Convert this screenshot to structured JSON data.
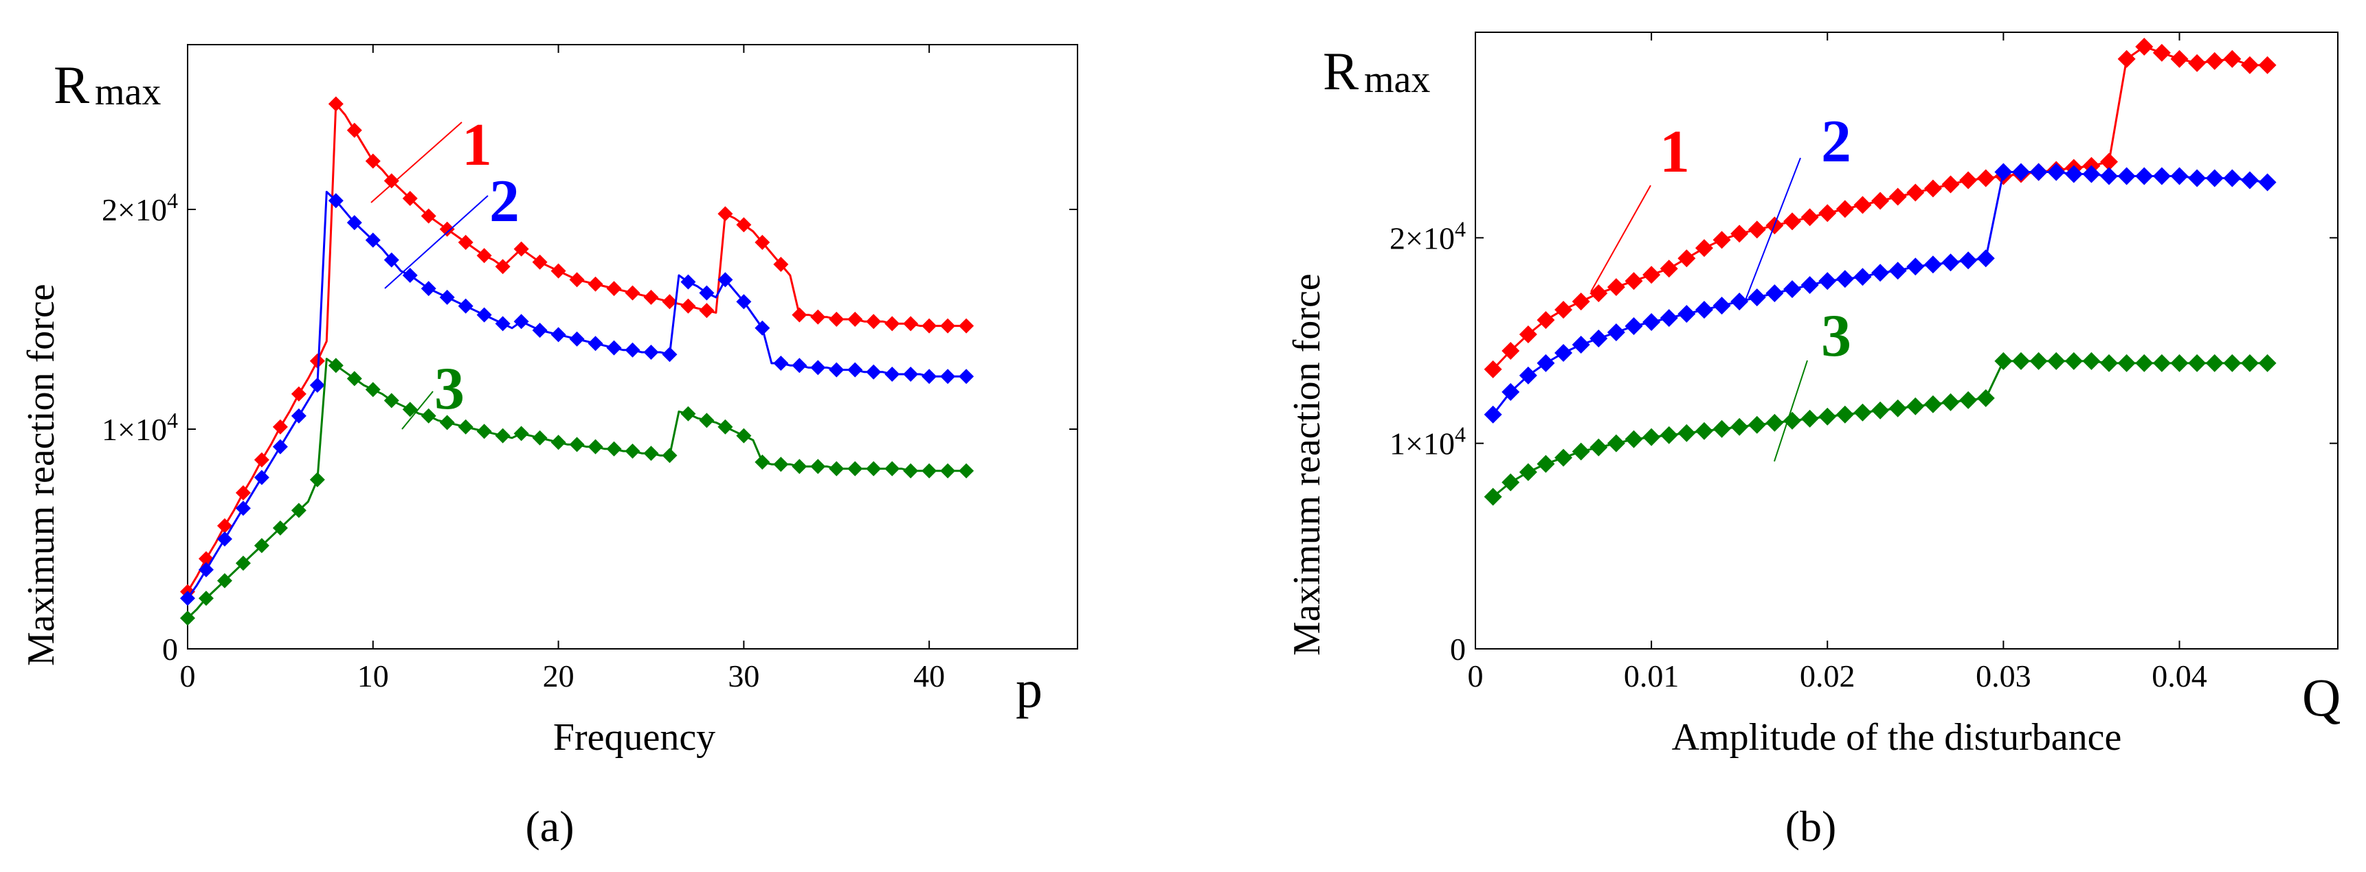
{
  "chart_data": [
    {
      "type": "line",
      "panel": "a",
      "caption": "(a)",
      "xlabel": "Frequency",
      "xsymbol": "p",
      "ylabel": "Maximum reaction force",
      "ysymbol_main": "R",
      "ysymbol_sub": "max",
      "xlim": [
        0,
        48
      ],
      "ylim": [
        0,
        27500
      ],
      "xticks": [
        0,
        10,
        20,
        30,
        40
      ],
      "xtick_labels": [
        "0",
        "10",
        "20",
        "30",
        "40"
      ],
      "yticks": [
        0,
        10000,
        20000
      ],
      "ytick_labels": [
        {
          "mantissa": "0",
          "exp": ""
        },
        {
          "mantissa": "1×10",
          "exp": "4"
        },
        {
          "mantissa": "2×10",
          "exp": "4"
        }
      ],
      "series": [
        {
          "name": "1",
          "color": "#ff0000",
          "marker_every": 2,
          "x": [
            0,
            0.5,
            1,
            1.5,
            2,
            2.5,
            3,
            3.5,
            4,
            4.5,
            5,
            5.5,
            6,
            6.5,
            7,
            7.5,
            8,
            8.5,
            9,
            9.5,
            10,
            10.5,
            11,
            11.5,
            12,
            12.5,
            13,
            13.5,
            14,
            14.5,
            15,
            15.5,
            16,
            16.5,
            17,
            17.5,
            18,
            18.5,
            19,
            19.5,
            20,
            20.5,
            21,
            21.5,
            22,
            22.5,
            23,
            23.5,
            24,
            24.5,
            25,
            25.5,
            26,
            26.5,
            27,
            27.5,
            28,
            28.5,
            29,
            29.5,
            30,
            30.5,
            31,
            31.5,
            32,
            32.5,
            33,
            33.5,
            34,
            34.5,
            35,
            35.5,
            36,
            36.5,
            37,
            37.5,
            38,
            38.5,
            39,
            39.5,
            40,
            40.5,
            41,
            41.5,
            42
          ],
          "y": [
            2600,
            3300,
            4100,
            4800,
            5600,
            6300,
            7100,
            7800,
            8600,
            9300,
            10100,
            10800,
            11600,
            12300,
            13100,
            14000,
            24800,
            24300,
            23600,
            22900,
            22200,
            21800,
            21300,
            20900,
            20500,
            20100,
            19700,
            19400,
            19100,
            18800,
            18500,
            18200,
            17900,
            17700,
            17400,
            17800,
            18200,
            17900,
            17600,
            17400,
            17200,
            17000,
            16800,
            16700,
            16600,
            16500,
            16400,
            16300,
            16200,
            16100,
            16000,
            15900,
            15800,
            15700,
            15600,
            15500,
            15400,
            15300,
            19800,
            19600,
            19300,
            19000,
            18500,
            18000,
            17500,
            17000,
            15200,
            15200,
            15100,
            15100,
            15000,
            15000,
            15000,
            14900,
            14900,
            14900,
            14800,
            14800,
            14800,
            14700,
            14700,
            14700,
            14700,
            14700,
            14700
          ]
        },
        {
          "name": "2",
          "color": "#0000ff",
          "marker_every": 2,
          "x": [
            0,
            0.5,
            1,
            1.5,
            2,
            2.5,
            3,
            3.5,
            4,
            4.5,
            5,
            5.5,
            6,
            6.5,
            7,
            7.5,
            8,
            8.5,
            9,
            9.5,
            10,
            10.5,
            11,
            11.5,
            12,
            12.5,
            13,
            13.5,
            14,
            14.5,
            15,
            15.5,
            16,
            16.5,
            17,
            17.5,
            18,
            18.5,
            19,
            19.5,
            20,
            20.5,
            21,
            21.5,
            22,
            22.5,
            23,
            23.5,
            24,
            24.5,
            25,
            25.5,
            26,
            26.5,
            27,
            27.5,
            28,
            28.5,
            29,
            29.5,
            30,
            30.5,
            31,
            31.5,
            32,
            32.5,
            33,
            33.5,
            34,
            34.5,
            35,
            35.5,
            36,
            36.5,
            37,
            37.5,
            38,
            38.5,
            39,
            39.5,
            40,
            40.5,
            41,
            41.5,
            42
          ],
          "y": [
            2300,
            2900,
            3600,
            4300,
            5000,
            5700,
            6400,
            7100,
            7800,
            8500,
            9200,
            9900,
            10600,
            11300,
            12000,
            20800,
            20400,
            19900,
            19400,
            19000,
            18600,
            18200,
            17700,
            17200,
            17000,
            16700,
            16400,
            16200,
            16000,
            15800,
            15600,
            15400,
            15200,
            15000,
            14800,
            14600,
            14900,
            14700,
            14500,
            14400,
            14300,
            14200,
            14100,
            14000,
            13900,
            13800,
            13700,
            13600,
            13600,
            13500,
            13500,
            13500,
            13400,
            17000,
            16700,
            16500,
            16200,
            16000,
            16800,
            16300,
            15800,
            15200,
            14600,
            13000,
            13000,
            12900,
            12900,
            12800,
            12800,
            12800,
            12700,
            12700,
            12700,
            12600,
            12600,
            12600,
            12500,
            12500,
            12500,
            12500,
            12400,
            12400,
            12400,
            12400,
            12400
          ]
        },
        {
          "name": "3",
          "color": "#008000",
          "marker_every": 2,
          "x": [
            0,
            0.5,
            1,
            1.5,
            2,
            2.5,
            3,
            3.5,
            4,
            4.5,
            5,
            5.5,
            6,
            6.5,
            7,
            7.5,
            8,
            8.5,
            9,
            9.5,
            10,
            10.5,
            11,
            11.5,
            12,
            12.5,
            13,
            13.5,
            14,
            14.5,
            15,
            15.5,
            16,
            16.5,
            17,
            17.5,
            18,
            18.5,
            19,
            19.5,
            20,
            20.5,
            21,
            21.5,
            22,
            22.5,
            23,
            23.5,
            24,
            24.5,
            25,
            25.5,
            26,
            26.5,
            27,
            27.5,
            28,
            28.5,
            29,
            29.5,
            30,
            30.5,
            31,
            31.5,
            32,
            32.5,
            33,
            33.5,
            34,
            34.5,
            35,
            35.5,
            36,
            36.5,
            37,
            37.5,
            38,
            38.5,
            39,
            39.5,
            40,
            40.5,
            41,
            41.5,
            42
          ],
          "y": [
            1400,
            1800,
            2300,
            2700,
            3100,
            3500,
            3900,
            4300,
            4700,
            5100,
            5500,
            5900,
            6300,
            6700,
            7700,
            13200,
            12900,
            12600,
            12300,
            12000,
            11800,
            11600,
            11300,
            11100,
            10900,
            10700,
            10600,
            10400,
            10300,
            10200,
            10100,
            10000,
            9900,
            9800,
            9700,
            9600,
            9800,
            9700,
            9600,
            9500,
            9400,
            9300,
            9300,
            9200,
            9200,
            9100,
            9100,
            9000,
            9000,
            8900,
            8900,
            8800,
            8800,
            10800,
            10700,
            10500,
            10400,
            10300,
            10100,
            9900,
            9700,
            9500,
            8500,
            8400,
            8400,
            8400,
            8300,
            8300,
            8300,
            8300,
            8200,
            8200,
            8200,
            8200,
            8200,
            8200,
            8200,
            8200,
            8100,
            8100,
            8100,
            8100,
            8100,
            8100,
            8100
          ]
        }
      ]
    },
    {
      "type": "line",
      "panel": "b",
      "caption": "(b)",
      "xlabel": "Amplitude of the disturbance",
      "xsymbol": "Q",
      "ylabel": "Maximum reaction force",
      "ysymbol_main": "R",
      "ysymbol_sub": "max",
      "xlim": [
        0,
        0.049
      ],
      "ylim": [
        0,
        30000
      ],
      "xticks": [
        0,
        0.01,
        0.02,
        0.03,
        0.04
      ],
      "xtick_labels": [
        "0",
        "0.01",
        "0.02",
        "0.03",
        "0.04"
      ],
      "yticks": [
        0,
        10000,
        20000
      ],
      "ytick_labels": [
        {
          "mantissa": "0",
          "exp": ""
        },
        {
          "mantissa": "1×10",
          "exp": "4"
        },
        {
          "mantissa": "2×10",
          "exp": "4"
        }
      ],
      "series": [
        {
          "name": "1",
          "color": "#ff0000",
          "marker_every": 1,
          "x": [
            0.001,
            0.002,
            0.003,
            0.004,
            0.005,
            0.006,
            0.007,
            0.008,
            0.009,
            0.01,
            0.011,
            0.012,
            0.013,
            0.014,
            0.015,
            0.016,
            0.017,
            0.018,
            0.019,
            0.02,
            0.021,
            0.022,
            0.023,
            0.024,
            0.025,
            0.026,
            0.027,
            0.028,
            0.029,
            0.03,
            0.031,
            0.032,
            0.033,
            0.034,
            0.035,
            0.036,
            0.037,
            0.038,
            0.039,
            0.04,
            0.041,
            0.042,
            0.043,
            0.044,
            0.045
          ],
          "y": [
            13600,
            14500,
            15300,
            16000,
            16500,
            16900,
            17300,
            17600,
            17900,
            18200,
            18500,
            19000,
            19500,
            19900,
            20200,
            20400,
            20600,
            20800,
            21000,
            21200,
            21400,
            21600,
            21800,
            22000,
            22200,
            22400,
            22600,
            22800,
            22900,
            23000,
            23100,
            23200,
            23300,
            23400,
            23500,
            23700,
            28700,
            29300,
            29000,
            28700,
            28500,
            28600,
            28700,
            28400,
            28400
          ]
        },
        {
          "name": "2",
          "color": "#0000ff",
          "marker_every": 1,
          "x": [
            0.001,
            0.002,
            0.003,
            0.004,
            0.005,
            0.006,
            0.007,
            0.008,
            0.009,
            0.01,
            0.011,
            0.012,
            0.013,
            0.014,
            0.015,
            0.016,
            0.017,
            0.018,
            0.019,
            0.02,
            0.021,
            0.022,
            0.023,
            0.024,
            0.025,
            0.026,
            0.027,
            0.028,
            0.029,
            0.03,
            0.031,
            0.032,
            0.033,
            0.034,
            0.035,
            0.036,
            0.037,
            0.038,
            0.039,
            0.04,
            0.041,
            0.042,
            0.043,
            0.044,
            0.045
          ],
          "y": [
            11400,
            12500,
            13300,
            13900,
            14400,
            14800,
            15100,
            15400,
            15700,
            15900,
            16100,
            16300,
            16500,
            16700,
            16900,
            17100,
            17300,
            17500,
            17700,
            17900,
            18000,
            18100,
            18300,
            18400,
            18600,
            18700,
            18800,
            18900,
            19000,
            23200,
            23200,
            23200,
            23200,
            23100,
            23100,
            23000,
            23000,
            23000,
            23000,
            23000,
            22900,
            22900,
            22900,
            22800,
            22700
          ]
        },
        {
          "name": "3",
          "color": "#008000",
          "marker_every": 1,
          "x": [
            0.001,
            0.002,
            0.003,
            0.004,
            0.005,
            0.006,
            0.007,
            0.008,
            0.009,
            0.01,
            0.011,
            0.012,
            0.013,
            0.014,
            0.015,
            0.016,
            0.017,
            0.018,
            0.019,
            0.02,
            0.021,
            0.022,
            0.023,
            0.024,
            0.025,
            0.026,
            0.027,
            0.028,
            0.029,
            0.03,
            0.031,
            0.032,
            0.033,
            0.034,
            0.035,
            0.036,
            0.037,
            0.038,
            0.039,
            0.04,
            0.041,
            0.042,
            0.043,
            0.044,
            0.045
          ],
          "y": [
            7400,
            8100,
            8600,
            9000,
            9300,
            9600,
            9800,
            10000,
            10200,
            10300,
            10400,
            10500,
            10600,
            10700,
            10800,
            10900,
            11000,
            11100,
            11200,
            11300,
            11400,
            11500,
            11600,
            11700,
            11800,
            11900,
            12000,
            12100,
            12200,
            14000,
            14000,
            14000,
            14000,
            14000,
            14000,
            13900,
            13900,
            13900,
            13900,
            13900,
            13900,
            13900,
            13900,
            13900,
            13900
          ]
        }
      ]
    }
  ],
  "annotations": {
    "a": [
      {
        "label": "1",
        "color": "#ff0000"
      },
      {
        "label": "2",
        "color": "#0000ff"
      },
      {
        "label": "3",
        "color": "#008000"
      }
    ],
    "b": [
      {
        "label": "1",
        "color": "#ff0000"
      },
      {
        "label": "2",
        "color": "#0000ff"
      },
      {
        "label": "3",
        "color": "#008000"
      }
    ]
  }
}
